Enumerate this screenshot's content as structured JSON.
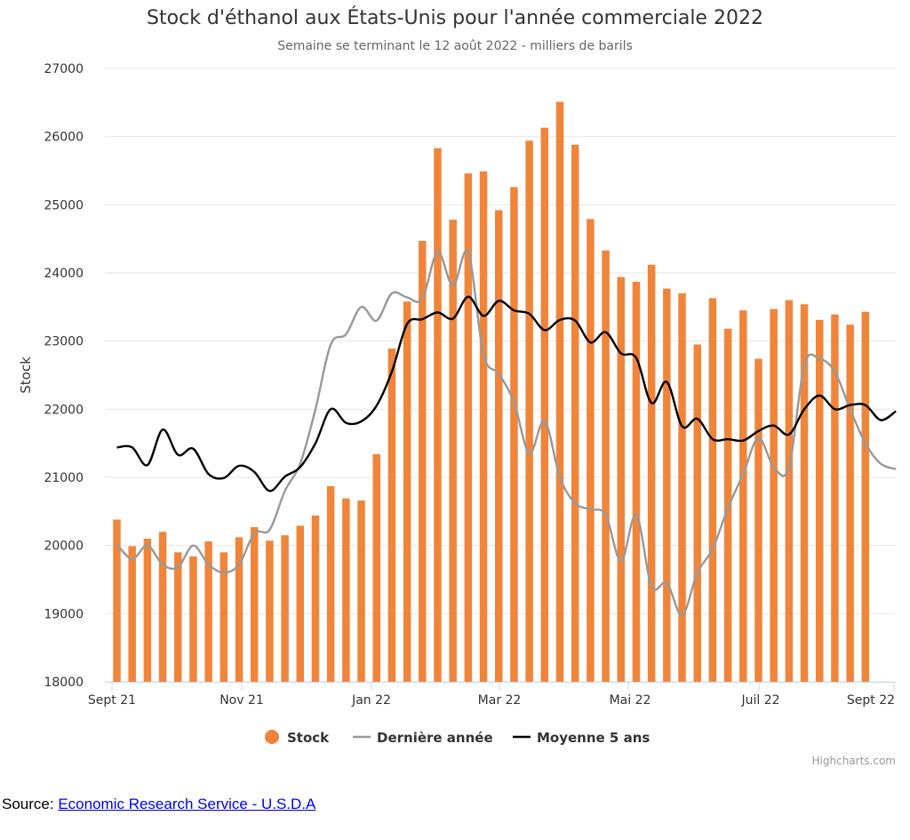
{
  "chart_data": {
    "type": "bar",
    "title": "Stock d'éthanol aux États-Unis pour l'année commerciale 2022",
    "subtitle": "Semaine se terminant le 12 août 2022 - milliers de barils",
    "ylabel": "Stock",
    "ylim": [
      18000,
      27000
    ],
    "yticks": [
      18000,
      19000,
      20000,
      21000,
      22000,
      23000,
      24000,
      25000,
      26000,
      27000
    ],
    "xticks": [
      "Sept 21",
      "Nov 21",
      "Jan 22",
      "Mar 22",
      "Mai 22",
      "Juil 22",
      "Sept 22"
    ],
    "grid": true,
    "legend_placement": "bottom-center",
    "credit": "Highcharts.com",
    "series": [
      {
        "name": "Stock",
        "kind": "bar",
        "color": "#f0853a",
        "values": [
          20380,
          19990,
          20100,
          20200,
          19900,
          19840,
          20060,
          19900,
          20120,
          20270,
          20070,
          20150,
          20290,
          20440,
          20870,
          20690,
          20660,
          21340,
          22890,
          23580,
          24470,
          25830,
          24780,
          25460,
          25490,
          24920,
          25260,
          25940,
          26130,
          26510,
          25880,
          24790,
          24330,
          23940,
          23870,
          24120,
          23770,
          23700,
          22950,
          23630,
          23180,
          23450,
          22740,
          23470,
          23600,
          23540,
          23310,
          23390,
          23240,
          23430
        ]
      },
      {
        "name": "Dernière année",
        "kind": "line",
        "color": "#999999",
        "values": [
          20020,
          19800,
          20000,
          19720,
          19680,
          20000,
          19720,
          19600,
          19720,
          20180,
          20230,
          20800,
          21200,
          22000,
          22950,
          23100,
          23500,
          23300,
          23700,
          23640,
          23620,
          24310,
          23810,
          24300,
          22800,
          22520,
          22100,
          21350,
          21830,
          21000,
          20620,
          20530,
          20450,
          19770,
          20450,
          19400,
          19450,
          18980,
          19600,
          19950,
          20550,
          21050,
          21580,
          21150,
          21150,
          22650,
          22740,
          22550,
          22000,
          21500,
          21200,
          21120
        ]
      },
      {
        "name": "Moyenne 5 ans",
        "kind": "line",
        "color": "#000000",
        "values": [
          21440,
          21440,
          21180,
          21700,
          21330,
          21420,
          21050,
          20990,
          21170,
          21080,
          20800,
          21010,
          21150,
          21500,
          22000,
          21800,
          21820,
          22050,
          22550,
          23250,
          23320,
          23420,
          23330,
          23650,
          23370,
          23590,
          23450,
          23400,
          23160,
          23310,
          23300,
          22980,
          23130,
          22820,
          22750,
          22090,
          22400,
          21750,
          21860,
          21560,
          21560,
          21540,
          21680,
          21760,
          21630,
          22000,
          22200,
          22000,
          22060,
          22060,
          21840,
          21970
        ]
      }
    ]
  },
  "source": {
    "label": "Source:",
    "link_text": "Economic Research Service - U.S.D.A"
  }
}
